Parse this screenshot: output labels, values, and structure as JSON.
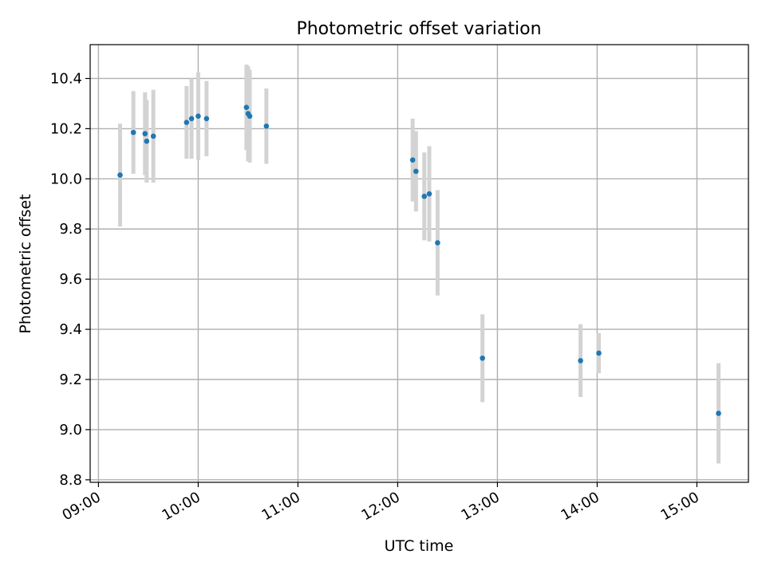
{
  "chart_data": {
    "type": "scatter",
    "title": "Photometric offset variation",
    "xlabel": "UTC time",
    "ylabel": "Photometric offset",
    "x_ticks": [
      "09:00",
      "10:00",
      "11:00",
      "12:00",
      "13:00",
      "14:00",
      "15:00"
    ],
    "y_ticks": [
      "8.8",
      "9.0",
      "9.2",
      "9.4",
      "9.6",
      "9.8",
      "10.0",
      "10.2",
      "10.4"
    ],
    "xlim": [
      "08:55",
      "15:31"
    ],
    "ylim": [
      8.79,
      10.535
    ],
    "grid": true,
    "legend": "none",
    "points": [
      {
        "x": "09:13",
        "y": 10.015,
        "err": 0.205
      },
      {
        "x": "09:21",
        "y": 10.185,
        "err": 0.165
      },
      {
        "x": "09:28",
        "y": 10.18,
        "err": 0.165
      },
      {
        "x": "09:29",
        "y": 10.15,
        "err": 0.165
      },
      {
        "x": "09:33",
        "y": 10.17,
        "err": 0.185
      },
      {
        "x": "09:53",
        "y": 10.225,
        "err": 0.145
      },
      {
        "x": "09:56",
        "y": 10.24,
        "err": 0.16
      },
      {
        "x": "10:00",
        "y": 10.25,
        "err": 0.175
      },
      {
        "x": "10:05",
        "y": 10.24,
        "err": 0.15
      },
      {
        "x": "10:29",
        "y": 10.285,
        "err": 0.17
      },
      {
        "x": "10:30",
        "y": 10.26,
        "err": 0.19
      },
      {
        "x": "10:31",
        "y": 10.25,
        "err": 0.185
      },
      {
        "x": "10:41",
        "y": 10.21,
        "err": 0.15
      },
      {
        "x": "12:09",
        "y": 10.075,
        "err": 0.165
      },
      {
        "x": "12:11",
        "y": 10.03,
        "err": 0.16
      },
      {
        "x": "12:16",
        "y": 9.93,
        "err": 0.175
      },
      {
        "x": "12:19",
        "y": 9.94,
        "err": 0.19
      },
      {
        "x": "12:24",
        "y": 9.745,
        "err": 0.21
      },
      {
        "x": "12:51",
        "y": 9.285,
        "err": 0.175
      },
      {
        "x": "13:50",
        "y": 9.275,
        "err": 0.145
      },
      {
        "x": "14:01",
        "y": 9.305,
        "err": 0.08
      },
      {
        "x": "15:13",
        "y": 9.065,
        "err": 0.2
      }
    ],
    "colors": {
      "marker": "#1f77b4",
      "errorbar": "#d3d3d3",
      "grid": "#b0b0b0",
      "axes": "#000000"
    }
  }
}
